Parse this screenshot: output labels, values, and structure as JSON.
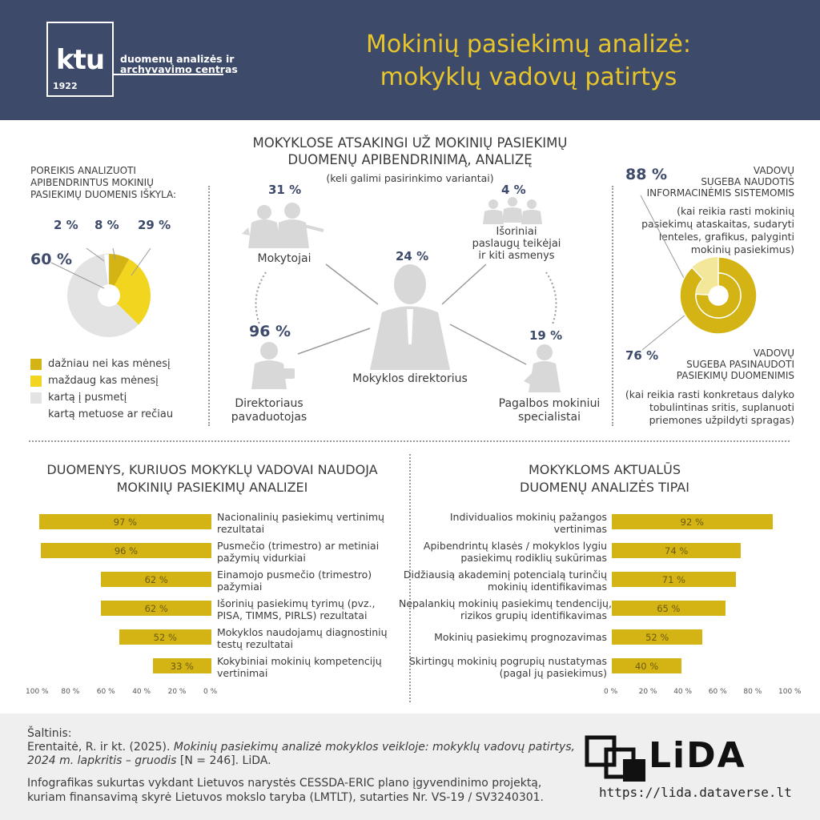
{
  "header": {
    "logo_text": "ktu",
    "logo_year": "1922",
    "logo_sub1": "duomenų analizės ir",
    "logo_sub2": "archyvavimo centras",
    "title_line1": "Mokinių pasiekimų analizė:",
    "title_line2": "mokyklų vadovų patirtys"
  },
  "colors": {
    "header_bg": "#3d4a69",
    "accent_dark": "#d4b414",
    "accent_light": "#f2d51f",
    "grey": "#e3e3e3",
    "figure": "#d8d8d8"
  },
  "left_panel": {
    "title_l1": "POREIKIS ANALIZUOTI",
    "title_l2": "APIBENDRINTUS MOKINIŲ",
    "title_l3": "PASIEKIMŲ DUOMENIS IŠKYLA:",
    "legend": [
      {
        "label": "dažniau nei kas mėnesį",
        "color": "#d4b414"
      },
      {
        "label": "maždaug kas mėnesį",
        "color": "#f2d51f"
      },
      {
        "label": "kartą į pusmetį",
        "color": "#e3e3e3"
      },
      {
        "label": "kartą metuose ar rečiau",
        "color": "#ffffff"
      }
    ]
  },
  "center": {
    "title_l1": "MOKYKLOSE ATSAKINGI UŽ MOKINIŲ PASIEKIMŲ",
    "title_l2": "DUOMENŲ APIBENDRINIMĄ, ANALIZĘ",
    "note": "(keli galimi pasirinkimo variantai)",
    "roles": [
      {
        "pct": "31 %",
        "label_l1": "Mokytojai",
        "label_l2": "",
        "label_l3": ""
      },
      {
        "pct": "4 %",
        "label_l1": "Išoriniai",
        "label_l2": "paslaugų teikėjai",
        "label_l3": "ir kiti asmenys"
      },
      {
        "pct": "24 %",
        "label_l1": "Mokyklos direktorius",
        "label_l2": "",
        "label_l3": ""
      },
      {
        "pct": "96 %",
        "label_l1": "Direktoriaus",
        "label_l2": "pavaduotojas",
        "label_l3": ""
      },
      {
        "pct": "19 %",
        "label_l1": "Pagalbos mokiniui",
        "label_l2": "specialistai",
        "label_l3": ""
      }
    ]
  },
  "right_panel": {
    "top_pct": "88 %",
    "top_l1": "VADOVŲ",
    "top_l2": "SUGEBA NAUDOTIS",
    "top_l3": "INFORMACINĖMIS SISTEMOMIS",
    "top_note_l1": "(kai reikia rasti mokinių",
    "top_note_l2": "pasiekimų ataskaitas, sudaryti",
    "top_note_l3": "lenteles, grafikus, palyginti",
    "top_note_l4": "mokinių pasiekimus)",
    "bottom_pct": "76 %",
    "bottom_l1": "VADOVŲ",
    "bottom_l2": "SUGEBA PASINAUDOTI",
    "bottom_l3": "PASIEKIMŲ DUOMENIMIS",
    "bottom_note_l1": "(kai reikia rasti konkretaus dalyko",
    "bottom_note_l2": "tobulintinas sritis, suplanuoti",
    "bottom_note_l3": "priemones užpildyti spragas)"
  },
  "bars_left": {
    "title_l1": "DUOMENYS, KURIUOS MOKYKLŲ VADOVAI NAUDOJA",
    "title_l2": "MOKINIŲ PASIEKIMŲ ANALIZEI",
    "ticks": [
      "100 %",
      "80 %",
      "60 %",
      "40 %",
      "20 %",
      "0 %"
    ]
  },
  "bars_right": {
    "title_l1": "MOKYKLOMS AKTUALŪS",
    "title_l2": "DUOMENŲ ANALIZĖS TIPAI",
    "ticks": [
      "0 %",
      "20 %",
      "40 %",
      "60 %",
      "80 %",
      "100 %"
    ]
  },
  "chart_data": [
    {
      "type": "pie",
      "title": "POREIKIS ANALIZUOTI APIBENDRINTUS MOKINIŲ PASIEKIMŲ DUOMENIS IŠKYLA:",
      "categories": [
        "dažniau nei kas mėnesį",
        "maždaug kas mėnesį",
        "kartą į pusmetį",
        "kartą metuose ar rečiau"
      ],
      "values": [
        8,
        29,
        60,
        2
      ],
      "labels": [
        "8 %",
        "29 %",
        "60 %",
        "2 %"
      ]
    },
    {
      "type": "bar",
      "orientation": "horizontal",
      "title": "DUOMENYS, KURIUOS MOKYKLŲ VADOVAI NAUDOJA MOKINIŲ PASIEKIMŲ ANALIZEI",
      "categories": [
        [
          "Nacionalinių pasiekimų vertinimų",
          "rezultatai"
        ],
        [
          "Pusmečio (trimestro) ar metiniai",
          "pažymių vidurkiai"
        ],
        [
          "Einamojo pusmečio (trimestro)",
          "pažymiai"
        ],
        [
          "Išorinių pasiekimų tyrimų (pvz.,",
          "PISA, TIMMS, PIRLS) rezultatai"
        ],
        [
          "Mokyklos naudojamų diagnostinių",
          "testų rezultatai"
        ],
        [
          "Kokybiniai mokinių kompetencijų",
          "vertinimai"
        ]
      ],
      "values": [
        97,
        96,
        62,
        62,
        52,
        33
      ],
      "labels": [
        "97 %",
        "96 %",
        "62 %",
        "62 %",
        "52 %",
        "33 %"
      ],
      "xlim": [
        0,
        100
      ]
    },
    {
      "type": "bar",
      "orientation": "horizontal",
      "title": "MOKYKLOMS AKTUALŪS DUOMENŲ ANALIZĖS TIPAI",
      "categories": [
        [
          "Individualios mokinių pažangos",
          "vertinimas"
        ],
        [
          "Apibendrintų klasės / mokyklos lygiu",
          "pasiekimų rodiklių sukūrimas"
        ],
        [
          "Didžiausią akademinį potencialą turinčių",
          "mokinių identifikavimas"
        ],
        [
          "Nepalankių mokinių pasiekimų tendencijų,",
          "rizikos grupių identifikavimas"
        ],
        [
          "Mokinių pasiekimų prognozavimas",
          ""
        ],
        [
          "Skirtingų mokinių pogrupių nustatymas",
          "(pagal jų pasiekimus)"
        ]
      ],
      "values": [
        92,
        74,
        71,
        65,
        52,
        40
      ],
      "labels": [
        "92 %",
        "74 %",
        "71 %",
        "65 %",
        "52 %",
        "40 %"
      ],
      "xlim": [
        0,
        100
      ]
    },
    {
      "type": "pie",
      "title": "VADOVŲ SUGEBA",
      "categories": [
        "SUGEBA NAUDOTIS INFORMACINĖMIS SISTEMOMIS",
        "SUGEBA PASINAUDOTI PASIEKIMŲ DUOMENIMIS"
      ],
      "values": [
        88,
        76
      ],
      "labels": [
        "88 %",
        "76 %"
      ]
    }
  ],
  "footer": {
    "source_label": "Šaltinis:",
    "src_l1_a": "Erentaitė, R. ir kt. (2025). ",
    "src_l1_b": "Mokinių pasiekimų analizė mokyklos veikloje: mokyklų vadovų patirtys,",
    "src_l2_a": "2024 m. lapkritis – gruodis",
    "src_l2_b": " [N = 246]. LiDA.",
    "info_l1": "Infografikas sukurtas vykdant Lietuvos narystės CESSDA-ERIC plano įgyvendinimo projektą,",
    "info_l2": "kuriam finansavimą skyrė Lietuvos mokslo taryba (LMTLT), sutarties Nr. VS-19 / SV3240301.",
    "lida_word": "LiDA",
    "lida_url": "https://lida.dataverse.lt"
  }
}
